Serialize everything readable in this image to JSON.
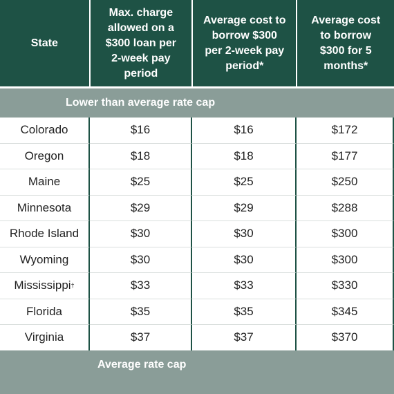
{
  "headers": {
    "state": "State",
    "max_charge": "Max. charge\nallowed on a\n$300 loan per\n2-week pay\nperiod",
    "avg_cost_2wk": "Average cost to\nborrow $300\nper 2-week pay\nperiod*",
    "avg_cost_5mo": "Average cost\nto borrow\n$300 for 5\nmonths*"
  },
  "sections": {
    "lower": "Lower than average rate cap",
    "average": "Average rate cap"
  },
  "rows": [
    {
      "state": "Colorado",
      "state_mark": "",
      "max_charge": "$16",
      "avg_2wk": "$16",
      "avg_5mo": "$172"
    },
    {
      "state": "Oregon",
      "state_mark": "",
      "max_charge": "$18",
      "avg_2wk": "$18",
      "avg_5mo": "$177"
    },
    {
      "state": "Maine",
      "state_mark": "",
      "max_charge": "$25",
      "avg_2wk": "$25",
      "avg_5mo": "$250"
    },
    {
      "state": "Minnesota",
      "state_mark": "",
      "max_charge": "$29",
      "avg_2wk": "$29",
      "avg_5mo": "$288"
    },
    {
      "state": "Rhode Island",
      "state_mark": "",
      "max_charge": "$30",
      "avg_2wk": "$30",
      "avg_5mo": "$300"
    },
    {
      "state": "Wyoming",
      "state_mark": "",
      "max_charge": "$30",
      "avg_2wk": "$30",
      "avg_5mo": "$300"
    },
    {
      "state": "Mississippi",
      "state_mark": "†",
      "max_charge": "$33",
      "avg_2wk": "$33",
      "avg_5mo": "$330"
    },
    {
      "state": "Florida",
      "state_mark": "",
      "max_charge": "$35",
      "avg_2wk": "$35",
      "avg_5mo": "$345"
    },
    {
      "state": "Virginia",
      "state_mark": "",
      "max_charge": "$37",
      "avg_2wk": "$37",
      "avg_5mo": "$370"
    }
  ],
  "colors": {
    "header_bg": "#1e5245",
    "banner_bg": "#8a9d98",
    "cell_bg": "#ffffff",
    "text": "#222222"
  }
}
